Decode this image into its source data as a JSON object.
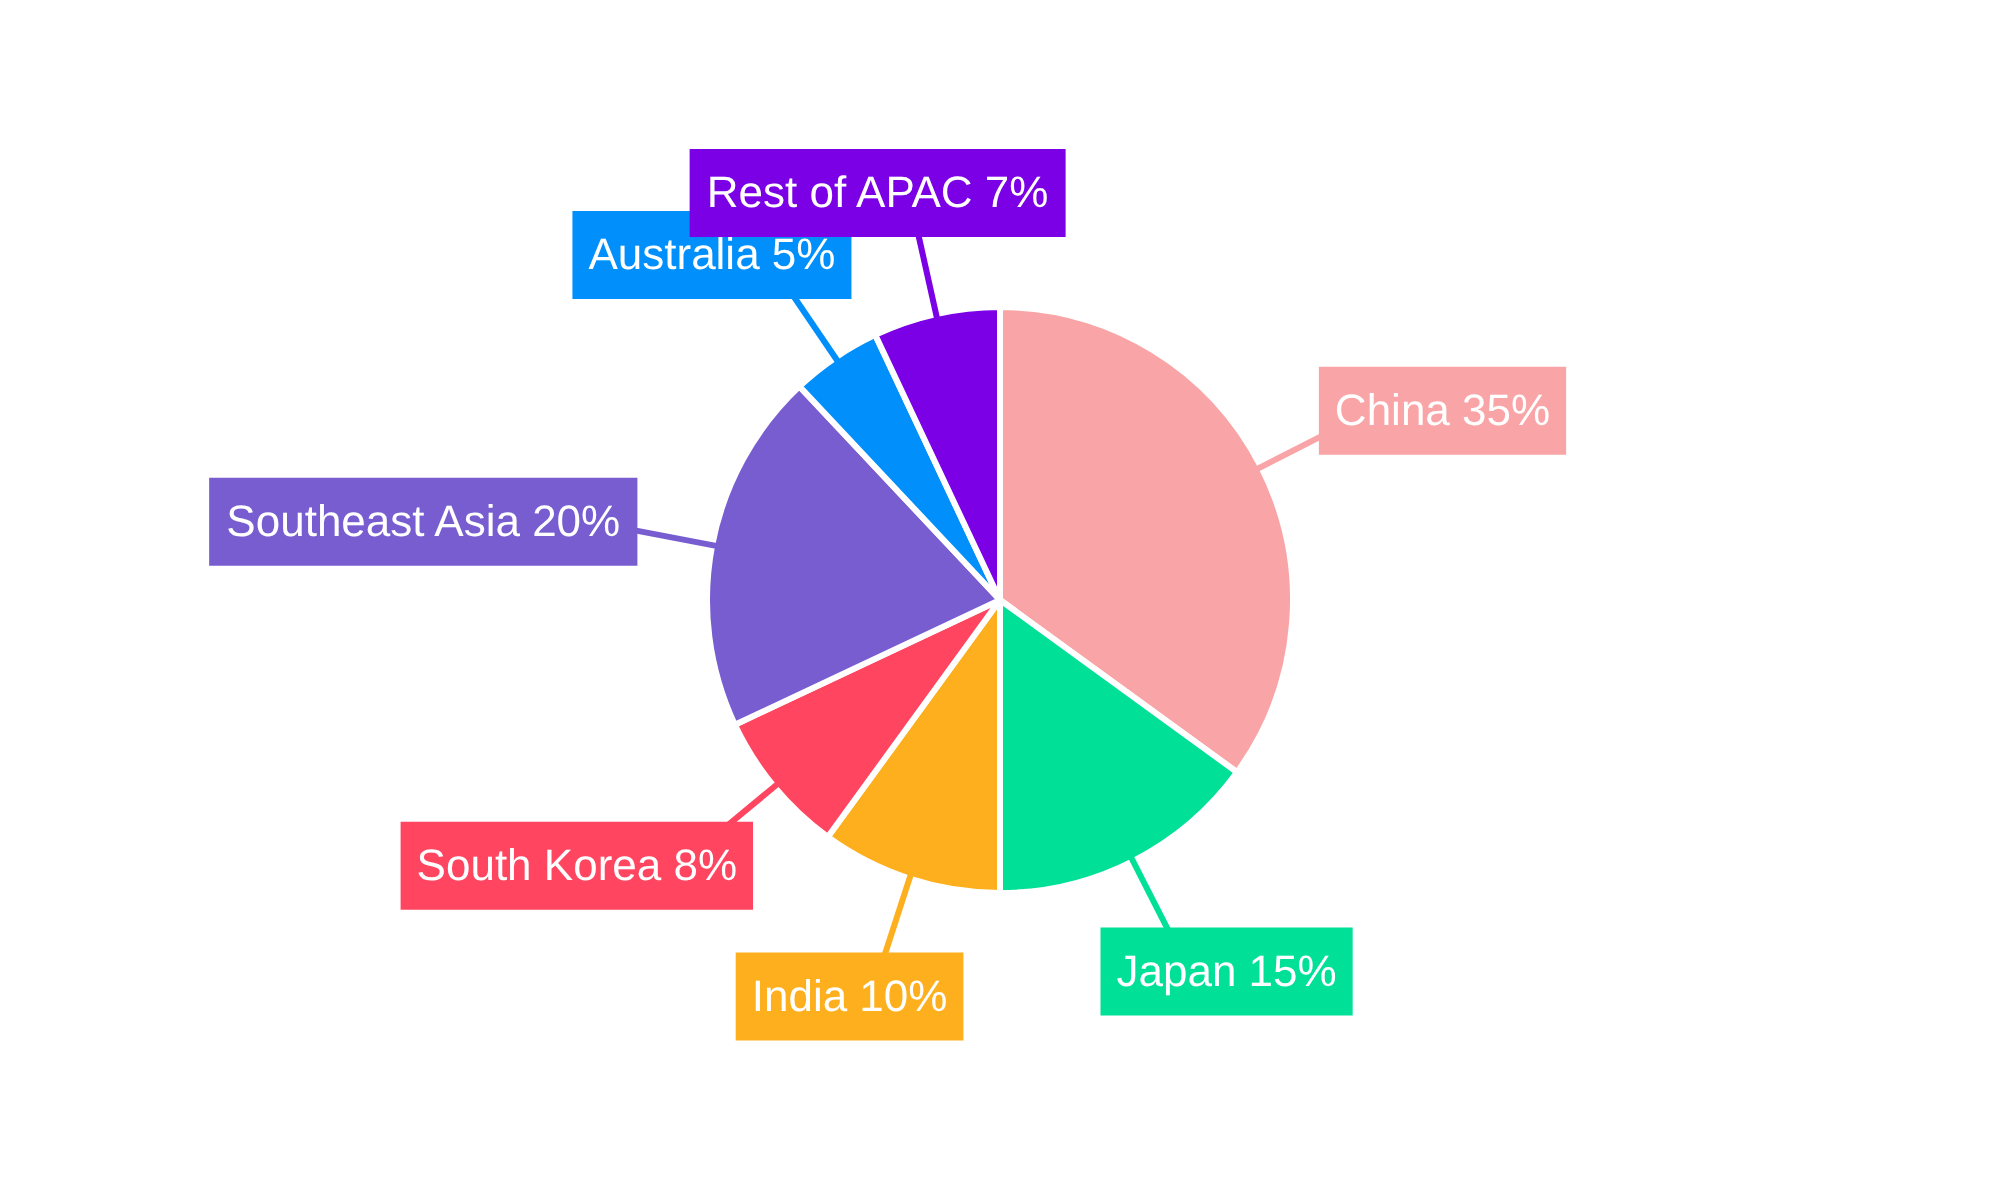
{
  "chart_data": {
    "type": "pie",
    "categories": [
      "China",
      "Japan",
      "India",
      "South Korea",
      "Southeast Asia",
      "Australia",
      "Rest of APAC"
    ],
    "values": [
      35,
      15,
      10,
      8,
      20,
      5,
      7
    ],
    "value_labels": [
      "35%",
      "15%",
      "10%",
      "8%",
      "20%",
      "5%",
      "7%"
    ],
    "colors": [
      "#f9a5a7",
      "#00e096",
      "#fdaf1d",
      "#ff4560",
      "#775dd0",
      "#008ffb",
      "#7b00e6"
    ],
    "legend": false
  }
}
